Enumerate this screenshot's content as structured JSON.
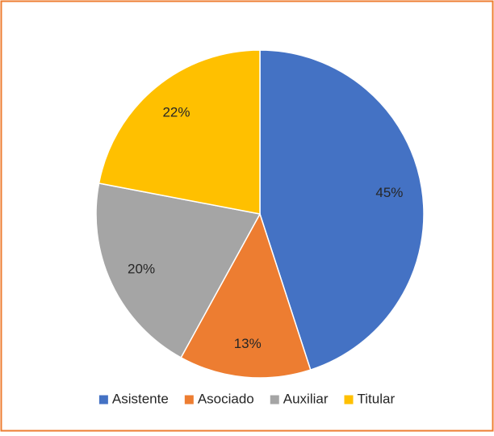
{
  "chart_data": {
    "type": "pie",
    "categories": [
      "Asistente",
      "Asociado",
      "Auxiliar",
      "Titular"
    ],
    "values": [
      45,
      13,
      20,
      22
    ],
    "value_labels": [
      "45%",
      "13%",
      "20%",
      "22%"
    ],
    "colors": [
      "#4472c4",
      "#ed7d31",
      "#a5a5a5",
      "#ffc000"
    ],
    "legend": "bottom"
  }
}
